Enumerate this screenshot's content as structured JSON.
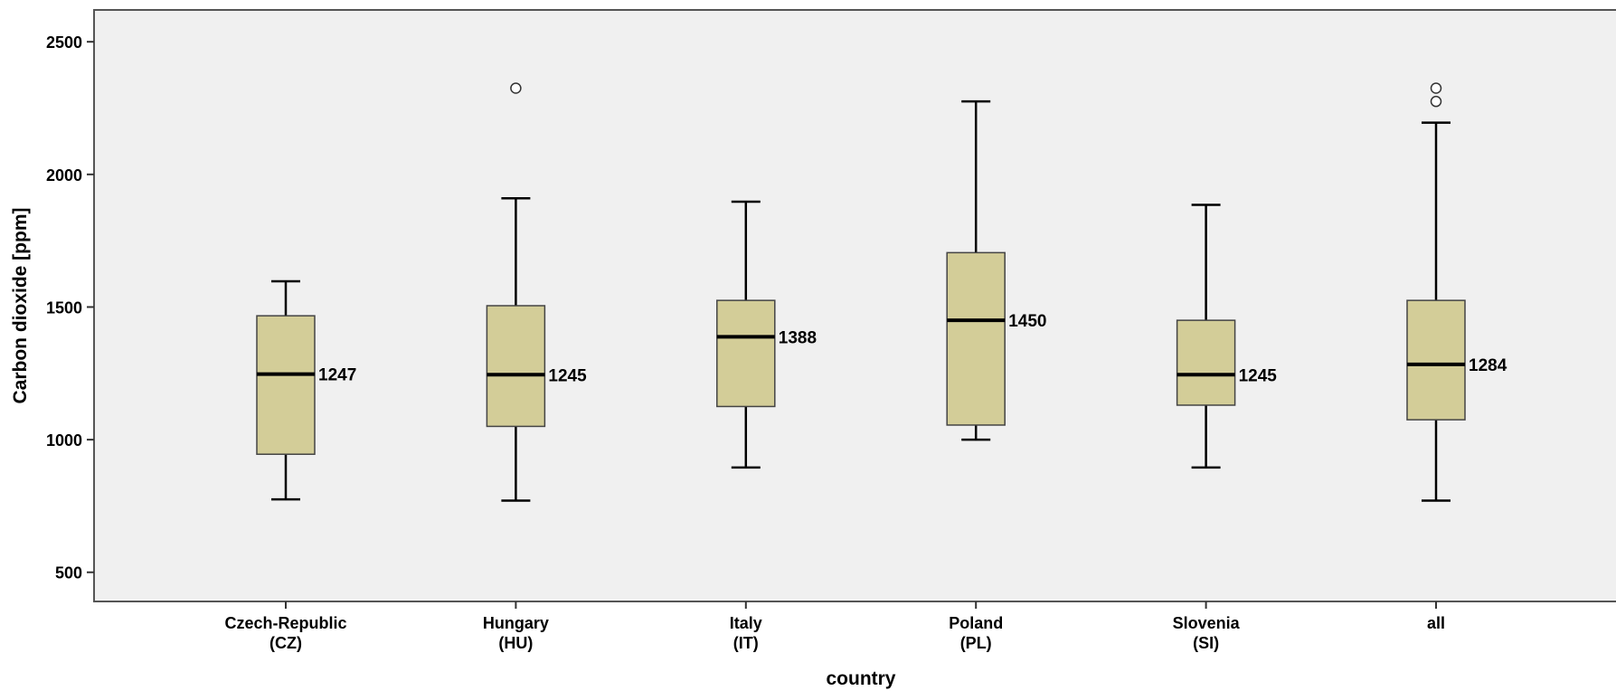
{
  "chart_data": {
    "type": "box",
    "xlabel": "country",
    "ylabel": "Carbon dioxide [ppm]",
    "ylim": [
      390,
      2620
    ],
    "yticks": [
      500,
      1000,
      1500,
      2000,
      2500
    ],
    "grid": false,
    "categories": [
      {
        "line1": "Czech-Republic",
        "line2": "(CZ)"
      },
      {
        "line1": "Hungary",
        "line2": "(HU)"
      },
      {
        "line1": "Italy",
        "line2": "(IT)"
      },
      {
        "line1": "Poland",
        "line2": "(PL)"
      },
      {
        "line1": "Slovenia",
        "line2": "(SI)"
      },
      {
        "line1": "all",
        "line2": ""
      }
    ],
    "boxes": [
      {
        "whisker_low": 775,
        "q1": 945,
        "median": 1247,
        "q3": 1467,
        "whisker_high": 1597,
        "outliers": [],
        "median_label": "1247"
      },
      {
        "whisker_low": 770,
        "q1": 1050,
        "median": 1245,
        "q3": 1505,
        "whisker_high": 1910,
        "outliers": [
          2325
        ],
        "median_label": "1245"
      },
      {
        "whisker_low": 895,
        "q1": 1125,
        "median": 1388,
        "q3": 1525,
        "whisker_high": 1897,
        "outliers": [],
        "median_label": "1388"
      },
      {
        "whisker_low": 1000,
        "q1": 1055,
        "median": 1450,
        "q3": 1705,
        "whisker_high": 2275,
        "outliers": [],
        "median_label": "1450"
      },
      {
        "whisker_low": 895,
        "q1": 1130,
        "median": 1245,
        "q3": 1450,
        "whisker_high": 1885,
        "outliers": [],
        "median_label": "1245"
      },
      {
        "whisker_low": 770,
        "q1": 1075,
        "median": 1284,
        "q3": 1525,
        "whisker_high": 2195,
        "outliers": [
          2325,
          2275
        ],
        "median_label": "1284"
      }
    ],
    "colors": {
      "box_fill": "#d3cd98",
      "plot_background": "#f0f0f0",
      "page_background": "#ffffff",
      "stroke": "#000000",
      "outlier_fill": "#ffffff"
    }
  }
}
